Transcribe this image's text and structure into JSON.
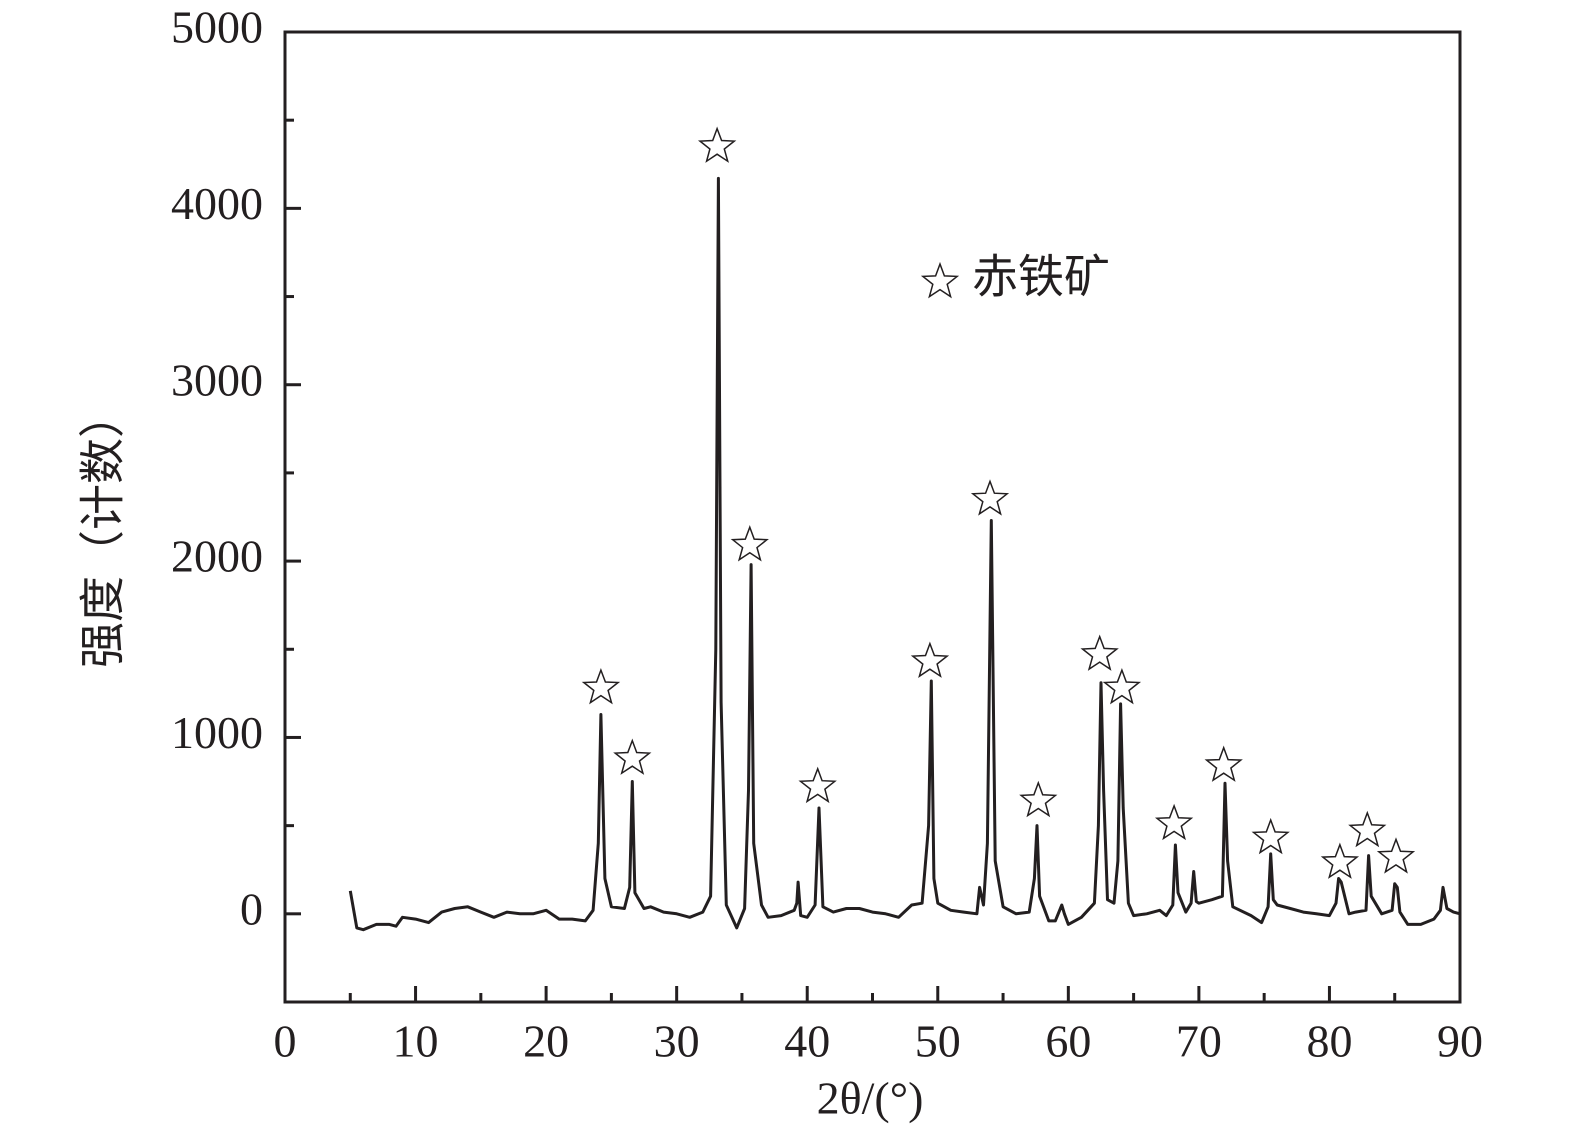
{
  "chart_data": {
    "type": "line",
    "xlabel": "2θ/(°)",
    "ylabel": "强度（计数）",
    "xlim": [
      0,
      90
    ],
    "xticks": [
      0,
      10,
      20,
      30,
      40,
      50,
      60,
      70,
      80,
      90
    ],
    "ylim": [
      -500,
      5000
    ],
    "yticks": [
      0,
      1000,
      2000,
      3000,
      4000,
      5000
    ],
    "legend": "top-right",
    "series": [
      {
        "color": "#231f20",
        "x": [
          5,
          5.5,
          6,
          7,
          8,
          8.5,
          9,
          10,
          11,
          12,
          13,
          14,
          15,
          16,
          17,
          18,
          19,
          20,
          21,
          22,
          23,
          23.6,
          24.0,
          24.2,
          24.5,
          25,
          26,
          26.4,
          26.6,
          26.8,
          27.5,
          28,
          29,
          30,
          31,
          32,
          32.6,
          33.0,
          33.2,
          33.4,
          33.8,
          34.6,
          35.2,
          35.5,
          35.7,
          35.9,
          36.5,
          37,
          38,
          39,
          39.2,
          39.3,
          39.5,
          40,
          40.6,
          40.9,
          41.2,
          42,
          43,
          44,
          45,
          46,
          47,
          48,
          48.8,
          49.3,
          49.5,
          49.7,
          50,
          51,
          52,
          53,
          53.2,
          53.5,
          53.8,
          54.1,
          54.4,
          55,
          56,
          57,
          57.4,
          57.6,
          57.8,
          58.5,
          59,
          59.5,
          59.7,
          60,
          61,
          62,
          62.3,
          62.5,
          62.7,
          63,
          63.5,
          63.8,
          64.0,
          64.2,
          64.6,
          65,
          66,
          67,
          67.5,
          68,
          68.2,
          68.4,
          69,
          69.4,
          69.6,
          69.8,
          70,
          71,
          71.8,
          72.0,
          72.2,
          72.6,
          74,
          74.8,
          75.3,
          75.5,
          75.7,
          76,
          77,
          78,
          79,
          80,
          80.5,
          80.7,
          80.9,
          81.5,
          82,
          82.8,
          83.0,
          83.2,
          84,
          84.8,
          85.0,
          85.2,
          85.4,
          86,
          87,
          88,
          88.5,
          88.7,
          89,
          89.5,
          90
        ],
        "values": [
          130,
          -80,
          -90,
          -60,
          -60,
          -70,
          -20,
          -30,
          -50,
          10,
          30,
          40,
          10,
          -20,
          10,
          0,
          0,
          20,
          -30,
          -30,
          -40,
          20,
          400,
          1130,
          200,
          40,
          30,
          150,
          750,
          120,
          30,
          40,
          10,
          0,
          -20,
          10,
          100,
          1500,
          4170,
          1200,
          50,
          -80,
          30,
          700,
          1980,
          400,
          50,
          -20,
          -10,
          20,
          60,
          180,
          -10,
          -20,
          50,
          600,
          40,
          10,
          30,
          30,
          10,
          0,
          -20,
          50,
          60,
          500,
          1320,
          200,
          60,
          20,
          10,
          0,
          150,
          50,
          400,
          2230,
          300,
          40,
          0,
          10,
          200,
          500,
          100,
          -40,
          -40,
          50,
          0,
          -60,
          -20,
          60,
          500,
          1310,
          700,
          80,
          60,
          300,
          1190,
          600,
          60,
          -10,
          0,
          20,
          -10,
          50,
          390,
          120,
          10,
          60,
          240,
          70,
          60,
          80,
          100,
          740,
          300,
          40,
          -10,
          -50,
          40,
          340,
          80,
          50,
          30,
          10,
          0,
          -10,
          60,
          200,
          180,
          0,
          10,
          20,
          330,
          100,
          0,
          20,
          170,
          150,
          10,
          -60,
          -60,
          -30,
          20,
          150,
          30,
          10,
          0
        ]
      },
      {
        "name": "赤铁矿",
        "marker": "star",
        "color": "#231f20",
        "x": [
          24.2,
          26.6,
          33.1,
          35.6,
          40.8,
          49.4,
          54.0,
          57.7,
          62.4,
          64.1,
          68.1,
          71.9,
          75.5,
          80.8,
          82.9,
          85.1
        ],
        "values": [
          1280,
          880,
          4350,
          2090,
          720,
          1430,
          2350,
          640,
          1470,
          1280,
          510,
          840,
          430,
          290,
          470,
          320
        ]
      }
    ]
  }
}
